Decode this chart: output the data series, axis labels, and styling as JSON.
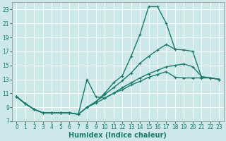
{
  "xlabel": "Humidex (Indice chaleur)",
  "bg_color": "#cce8e8",
  "grid_color": "#ffffff",
  "line_color": "#1a7a6a",
  "xlim": [
    -0.5,
    23.5
  ],
  "ylim": [
    7,
    24
  ],
  "yticks": [
    7,
    9,
    11,
    13,
    15,
    17,
    19,
    21,
    23
  ],
  "xticks": [
    0,
    1,
    2,
    3,
    4,
    5,
    6,
    7,
    8,
    9,
    10,
    11,
    12,
    13,
    14,
    15,
    16,
    17,
    18,
    19,
    20,
    21,
    22,
    23
  ],
  "line_spike_x": [
    0,
    1,
    2,
    3,
    4,
    5,
    6,
    7,
    8,
    9,
    10,
    11,
    12,
    13,
    14,
    15,
    16,
    17,
    18
  ],
  "line_spike_y": [
    10.5,
    9.5,
    8.7,
    8.2,
    8.2,
    8.2,
    8.2,
    8.0,
    9.0,
    9.8,
    11.0,
    12.5,
    13.5,
    16.3,
    19.4,
    23.4,
    23.4,
    21.0,
    17.3
  ],
  "line_upper_x": [
    0,
    1,
    2,
    3,
    4,
    5,
    6,
    7,
    8,
    9,
    10,
    11,
    12,
    13,
    14,
    15,
    16,
    17,
    18,
    19,
    20,
    21,
    22,
    23
  ],
  "line_upper_y": [
    10.5,
    9.5,
    8.7,
    8.2,
    8.2,
    8.2,
    8.2,
    8.0,
    9.0,
    9.8,
    10.8,
    11.8,
    12.8,
    13.9,
    15.3,
    16.3,
    17.2,
    18.0,
    17.3,
    17.2,
    17.0,
    13.3,
    13.2,
    13.0
  ],
  "line_mid_x": [
    0,
    1,
    2,
    3,
    4,
    5,
    6,
    7,
    8,
    9,
    10,
    11,
    12,
    13,
    14,
    15,
    16,
    17,
    18,
    19,
    20,
    21,
    22,
    23
  ],
  "line_mid_y": [
    10.5,
    9.5,
    8.7,
    8.2,
    8.2,
    8.2,
    8.2,
    8.0,
    9.0,
    9.6,
    10.3,
    11.0,
    11.8,
    12.5,
    13.2,
    13.8,
    14.3,
    14.8,
    15.0,
    15.2,
    14.8,
    13.4,
    13.2,
    13.0
  ],
  "line_bot_x": [
    0,
    1,
    2,
    3,
    4,
    5,
    6,
    7,
    8,
    9,
    10,
    11,
    12,
    13,
    14,
    15,
    16,
    17,
    18,
    19,
    20,
    21,
    22,
    23
  ],
  "line_bot_y": [
    10.5,
    9.5,
    8.7,
    8.2,
    8.2,
    8.2,
    8.2,
    8.0,
    13.0,
    10.5,
    10.3,
    11.0,
    11.5,
    12.2,
    12.7,
    13.3,
    13.7,
    14.1,
    13.3,
    13.2,
    13.2,
    13.2,
    13.2,
    13.0
  ],
  "marker": "+",
  "marker_size": 3.5,
  "line_width": 1.0,
  "tick_fontsize": 5.5,
  "xlabel_fontsize": 7
}
